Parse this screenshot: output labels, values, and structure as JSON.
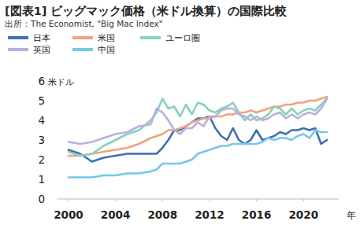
{
  "chart_data": {
    "type": "line",
    "title": "[図表1] ビッグマック価格（米ドル換算）の国際比較",
    "subtitle": "出所：The Economist, \"Big Mac Index\"",
    "y_label": "米ドル",
    "x_label": "年",
    "x": [
      2000,
      2001,
      2002,
      2003,
      2004,
      2005,
      2006,
      2007,
      2007.5,
      2008,
      2008.5,
      2009,
      2009.5,
      2010,
      2010.5,
      2011,
      2011.5,
      2012,
      2012.5,
      2013,
      2013.5,
      2014,
      2014.5,
      2015,
      2015.5,
      2016,
      2016.5,
      2017,
      2017.5,
      2018,
      2018.5,
      2019,
      2019.5,
      2020,
      2020.5,
      2021,
      2021.5,
      2022
    ],
    "series": [
      {
        "name": "日本",
        "color": "#3f6fb0",
        "values": [
          2.5,
          2.3,
          1.9,
          2.1,
          2.2,
          2.3,
          2.3,
          2.3,
          2.3,
          2.6,
          3.0,
          3.5,
          3.5,
          3.7,
          3.9,
          4.1,
          4.1,
          4.2,
          3.6,
          3.2,
          3.0,
          3.6,
          3.0,
          2.8,
          3.0,
          3.5,
          3.0,
          3.1,
          3.2,
          3.4,
          3.3,
          3.5,
          3.5,
          3.6,
          3.5,
          3.6,
          2.8,
          3.0
        ]
      },
      {
        "name": "米国",
        "color": "#f0a27e",
        "values": [
          2.2,
          2.2,
          2.3,
          2.4,
          2.5,
          2.6,
          2.8,
          3.1,
          3.2,
          3.3,
          3.5,
          3.5,
          3.6,
          3.7,
          3.9,
          4.0,
          4.1,
          4.1,
          4.2,
          4.2,
          4.3,
          4.3,
          4.4,
          4.4,
          4.5,
          4.4,
          4.5,
          4.6,
          4.7,
          4.7,
          4.8,
          4.8,
          4.9,
          4.9,
          5.0,
          5.0,
          5.1,
          5.2
        ]
      },
      {
        "name": "ユーロ圏",
        "color": "#86d3b6",
        "values": [
          2.4,
          2.2,
          2.3,
          2.7,
          3.0,
          3.3,
          3.5,
          4.0,
          4.4,
          5.1,
          4.6,
          4.7,
          4.2,
          4.8,
          4.3,
          4.9,
          4.8,
          4.5,
          4.4,
          4.6,
          4.7,
          4.9,
          4.4,
          4.0,
          4.3,
          4.0,
          4.1,
          4.3,
          4.7,
          4.6,
          4.3,
          4.6,
          4.3,
          4.5,
          4.6,
          4.5,
          4.8,
          5.1
        ]
      },
      {
        "name": "英国",
        "color": "#b9afe0",
        "values": [
          2.9,
          2.8,
          2.9,
          3.1,
          3.3,
          3.4,
          3.7,
          3.8,
          4.6,
          4.4,
          4.0,
          3.5,
          3.3,
          3.6,
          3.6,
          3.9,
          3.7,
          4.2,
          4.2,
          4.5,
          4.6,
          4.6,
          4.3,
          4.2,
          4.0,
          4.2,
          4.0,
          4.1,
          4.3,
          4.4,
          4.1,
          4.3,
          4.1,
          4.3,
          4.4,
          4.3,
          4.6,
          5.1
        ]
      },
      {
        "name": "中国",
        "color": "#74c8ea",
        "values": [
          1.1,
          1.1,
          1.1,
          1.2,
          1.2,
          1.3,
          1.3,
          1.4,
          1.5,
          1.8,
          1.8,
          1.8,
          1.8,
          1.9,
          2.0,
          2.3,
          2.4,
          2.5,
          2.6,
          2.7,
          2.7,
          2.8,
          2.8,
          2.8,
          2.8,
          2.8,
          2.9,
          3.1,
          3.0,
          3.1,
          3.1,
          3.0,
          3.2,
          3.3,
          3.1,
          3.5,
          3.4,
          3.4
        ]
      }
    ],
    "xlim": [
      1999,
      2023
    ],
    "xticks": [
      2000,
      2004,
      2008,
      2012,
      2016,
      2020
    ],
    "ylim": [
      0,
      6
    ],
    "yticks": [
      0,
      1,
      2,
      3,
      4,
      5,
      6
    ],
    "grid": false,
    "legend": "top"
  }
}
